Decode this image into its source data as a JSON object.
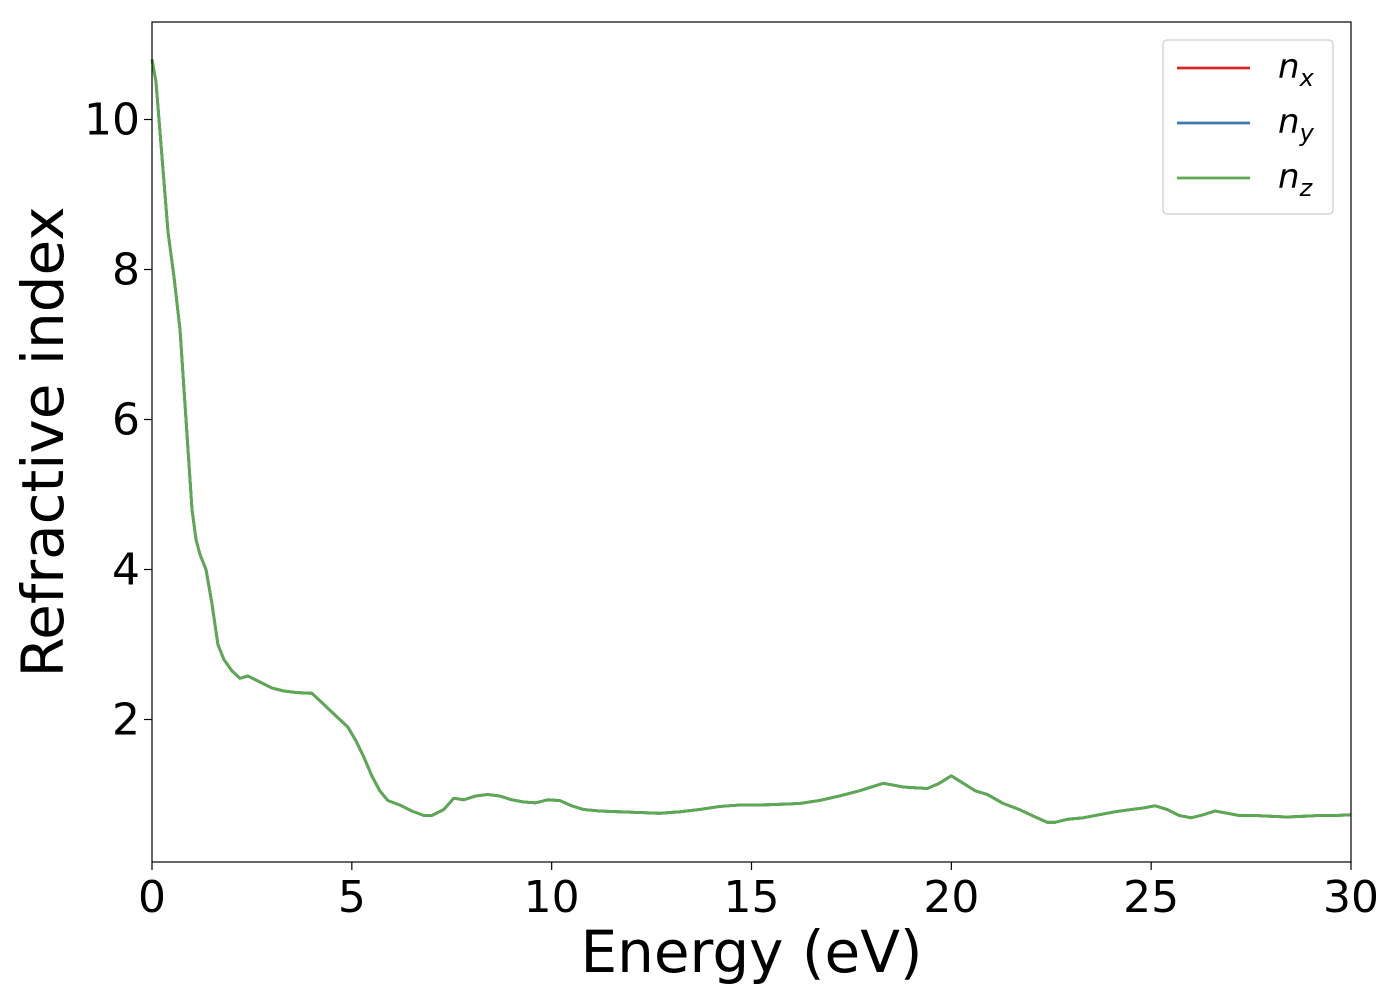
{
  "chart_data": {
    "type": "line",
    "xlabel": "Energy (eV)",
    "ylabel": "Refractive index",
    "xlim": [
      0,
      30
    ],
    "ylim": [
      0.1,
      11.3
    ],
    "xticks": [
      0,
      5,
      10,
      15,
      20,
      25,
      30
    ],
    "xtick_labels": [
      "0",
      "5",
      "10",
      "15",
      "20",
      "25",
      "30"
    ],
    "yticks": [
      2,
      4,
      6,
      8,
      10
    ],
    "ytick_labels": [
      "2",
      "4",
      "6",
      "8",
      "10"
    ],
    "grid": false,
    "legend_position": "top-right",
    "x": [
      0,
      0.1,
      0.25,
      0.4,
      0.55,
      0.7,
      0.8,
      0.9,
      1.0,
      1.1,
      1.2,
      1.35,
      1.5,
      1.65,
      1.8,
      2.0,
      2.2,
      2.4,
      2.7,
      3.0,
      3.3,
      3.6,
      4.0,
      4.3,
      4.6,
      4.9,
      5.1,
      5.3,
      5.5,
      5.7,
      5.9,
      6.2,
      6.5,
      6.8,
      7.0,
      7.3,
      7.55,
      7.8,
      8.1,
      8.4,
      8.7,
      9.0,
      9.3,
      9.6,
      9.9,
      10.2,
      10.5,
      10.8,
      11.2,
      11.7,
      12.2,
      12.7,
      13.2,
      13.7,
      14.2,
      14.7,
      15.2,
      15.7,
      16.2,
      16.7,
      17.2,
      17.7,
      18.0,
      18.3,
      18.5,
      18.8,
      19.1,
      19.4,
      19.7,
      20.0,
      20.3,
      20.6,
      20.9,
      21.3,
      21.7,
      22.1,
      22.4,
      22.6,
      22.9,
      23.3,
      23.7,
      24.1,
      24.5,
      24.8,
      25.1,
      25.4,
      25.7,
      26.0,
      26.3,
      26.6,
      26.9,
      27.2,
      27.6,
      28.0,
      28.4,
      28.8,
      29.2,
      29.6,
      30.0
    ],
    "y": [
      10.8,
      10.5,
      9.5,
      8.5,
      7.9,
      7.2,
      6.4,
      5.6,
      4.8,
      4.4,
      4.2,
      4.0,
      3.55,
      3.0,
      2.8,
      2.65,
      2.55,
      2.58,
      2.5,
      2.42,
      2.38,
      2.36,
      2.35,
      2.2,
      2.05,
      1.9,
      1.72,
      1.5,
      1.25,
      1.05,
      0.92,
      0.86,
      0.78,
      0.72,
      0.72,
      0.8,
      0.95,
      0.93,
      0.98,
      1.0,
      0.98,
      0.93,
      0.9,
      0.89,
      0.93,
      0.92,
      0.85,
      0.8,
      0.78,
      0.77,
      0.76,
      0.75,
      0.77,
      0.8,
      0.84,
      0.86,
      0.86,
      0.87,
      0.88,
      0.92,
      0.98,
      1.05,
      1.1,
      1.15,
      1.13,
      1.1,
      1.09,
      1.08,
      1.15,
      1.25,
      1.15,
      1.05,
      1.0,
      0.88,
      0.8,
      0.7,
      0.63,
      0.63,
      0.67,
      0.69,
      0.73,
      0.77,
      0.8,
      0.82,
      0.85,
      0.8,
      0.72,
      0.69,
      0.73,
      0.78,
      0.75,
      0.72,
      0.72,
      0.71,
      0.7,
      0.71,
      0.72,
      0.72,
      0.73
    ],
    "series": [
      {
        "name": "n",
        "subscript": "x",
        "color": "#d62728"
      },
      {
        "name": "n",
        "subscript": "y",
        "color": "#3a7bb0"
      },
      {
        "name": "n",
        "subscript": "z",
        "color": "#5aaa50"
      }
    ]
  }
}
